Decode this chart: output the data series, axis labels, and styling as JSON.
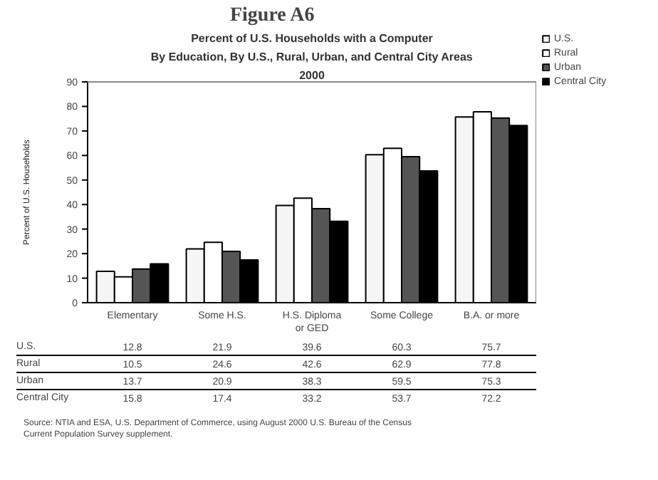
{
  "chart_data": {
    "type": "bar",
    "title": "Figure A6",
    "subtitle": "Percent of U.S. Households with a Computer\nBy Education, By U.S., Rural, Urban, and Central City Areas\n2000",
    "ylabel": "Percent of U.S. Households",
    "categories": [
      "Elementary",
      "Some H.S.",
      "H.S. Diploma or GED",
      "Some College",
      "B.A. or more"
    ],
    "series": [
      {
        "name": "U.S.",
        "color": "#f5f5f5",
        "values": [
          12.8,
          21.9,
          39.6,
          60.3,
          75.7
        ]
      },
      {
        "name": "Rural",
        "color": "#ffffff",
        "values": [
          10.5,
          24.6,
          42.6,
          62.9,
          77.8
        ]
      },
      {
        "name": "Urban",
        "color": "#555555",
        "values": [
          13.7,
          20.9,
          38.3,
          59.5,
          75.3
        ]
      },
      {
        "name": "Central City",
        "color": "#000000",
        "values": [
          15.8,
          17.4,
          33.2,
          53.7,
          72.2
        ]
      }
    ],
    "ylim": [
      0,
      90
    ],
    "yticks": [
      0,
      10,
      20,
      30,
      40,
      50,
      60,
      70,
      80,
      90
    ],
    "grid": false,
    "legend": "top right",
    "data_labels": true,
    "annotations": [
      "Source:  NTIA and ESA, U.S. Department of Commerce, using August 2000 U.S. Bureau of the Census Current Population Survey supplement."
    ]
  }
}
